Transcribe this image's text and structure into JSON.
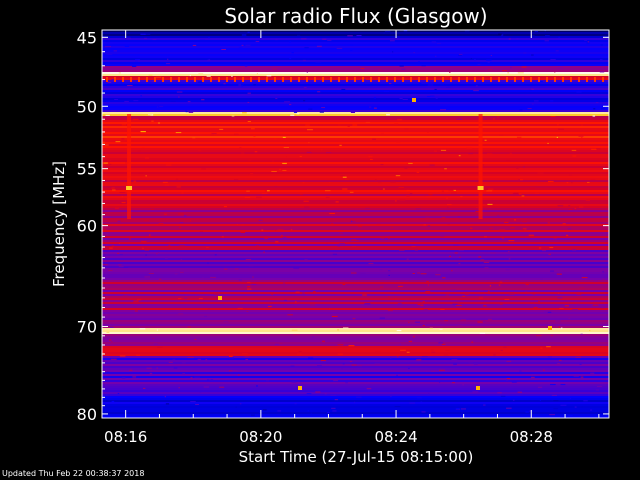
{
  "chart_data": {
    "type": "heatmap",
    "title": "Solar radio Flux (Glasgow)",
    "xlabel": "Start Time (27-Jul-15 08:15:00)",
    "ylabel": "Frequency [MHz]",
    "x_ticks": [
      {
        "minute": 16,
        "label": "08:16"
      },
      {
        "minute": 20,
        "label": "08:20"
      },
      {
        "minute": 24,
        "label": "08:24"
      },
      {
        "minute": 28,
        "label": "08:28"
      }
    ],
    "y_ticks": [
      {
        "value": 45,
        "label": "45"
      },
      {
        "value": 50,
        "label": "50"
      },
      {
        "value": 55,
        "label": "55"
      },
      {
        "value": 60,
        "label": "60"
      },
      {
        "value": 70,
        "label": "70"
      },
      {
        "value": 80,
        "label": "80"
      }
    ],
    "xlim_minutes": [
      15.3,
      30.3
    ],
    "ylim_mhz": [
      44.5,
      80.5
    ],
    "y_scale": "log",
    "colormap": "blue-red-yellow-white",
    "notable_bands_mhz": [
      48.8,
      52.7,
      72.2
    ],
    "notable_spikes_minute": [
      16.1,
      26.5
    ]
  },
  "footer": {
    "updated": "Updated Thu Feb 22 00:38:37 2018"
  }
}
